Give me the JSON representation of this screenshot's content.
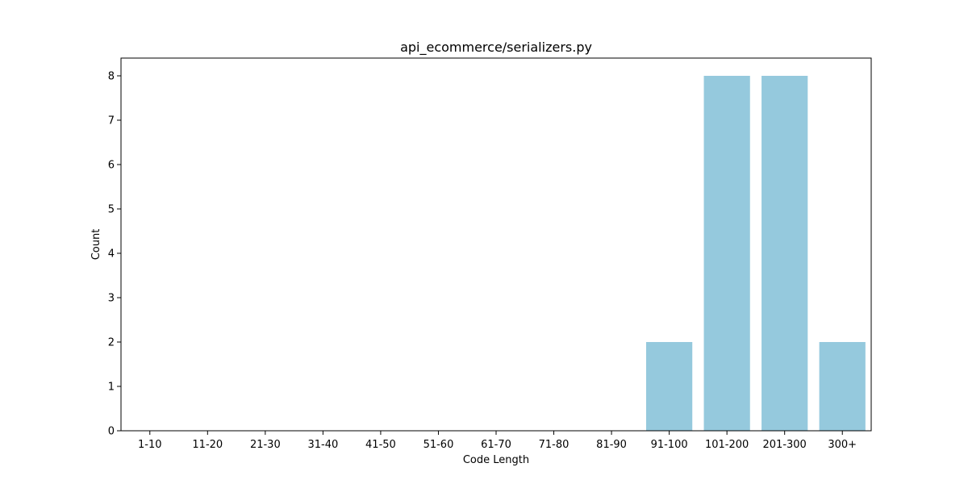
{
  "chart_data": {
    "type": "bar",
    "title": "api_ecommerce/serializers.py",
    "xlabel": "Code Length",
    "ylabel": "Count",
    "categories": [
      "1-10",
      "11-20",
      "21-30",
      "31-40",
      "41-50",
      "51-60",
      "61-70",
      "71-80",
      "81-90",
      "91-100",
      "101-200",
      "201-300",
      "300+"
    ],
    "values": [
      0,
      0,
      0,
      0,
      0,
      0,
      0,
      0,
      0,
      2,
      8,
      8,
      2
    ],
    "ylim": [
      0,
      8.4
    ],
    "yticks": [
      "0",
      "1",
      "2",
      "3",
      "4",
      "5",
      "6",
      "7",
      "8"
    ],
    "bar_color": "#95c9dd",
    "grid": false,
    "legend": "none"
  }
}
